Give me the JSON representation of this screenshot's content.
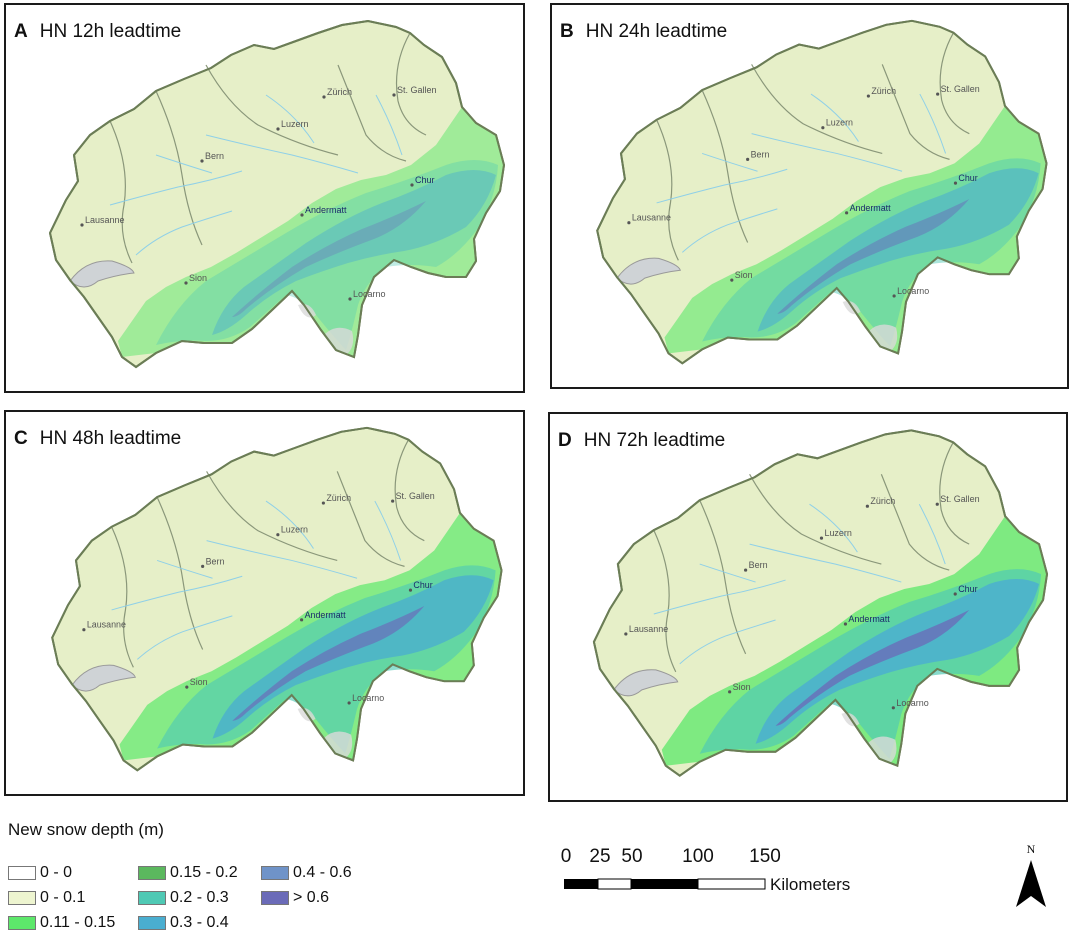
{
  "panels": [
    {
      "letter": "A",
      "title": "HN 12h leadtime",
      "snow_extent": 0.35
    },
    {
      "letter": "B",
      "title": "HN 24h leadtime",
      "snow_extent": 0.55
    },
    {
      "letter": "C",
      "title": "HN 48h leadtime",
      "snow_extent": 0.8
    },
    {
      "letter": "D",
      "title": "HN 72h leadtime",
      "snow_extent": 0.9
    }
  ],
  "map_labels": {
    "zurich": "Zürich",
    "st_gallen": "St. Gallen",
    "luzern": "Luzern",
    "bern": "Bern",
    "lausanne": "Lausanne",
    "sion": "Sion",
    "andermatt": "Andermatt",
    "chur": "Chur",
    "locarno": "Locarno"
  },
  "legend": {
    "title": "New snow depth (m)",
    "items": [
      {
        "label": "0 - 0",
        "color": "#ffffff"
      },
      {
        "label": "0 - 0.1",
        "color": "#eef5d0"
      },
      {
        "label": "0.11 - 0.15",
        "color": "#5de86b"
      },
      {
        "label": "0.15 - 0.2",
        "color": "#5bb85e"
      },
      {
        "label": "0.2 - 0.3",
        "color": "#4fc9b4"
      },
      {
        "label": "0.3 - 0.4",
        "color": "#4aaed0"
      },
      {
        "label": "0.4 - 0.6",
        "color": "#6f93c8"
      },
      {
        "label": "> 0.6",
        "color": "#6b6bb8"
      }
    ]
  },
  "scale": {
    "ticks": [
      "0",
      "25",
      "50",
      "100",
      "150"
    ],
    "units": "Kilometers"
  },
  "north": {
    "label": "N"
  },
  "colors": {
    "land": "#e6efc8",
    "border": "#6b7d56",
    "water": "#cfd3d6",
    "rivers": "#8fd0e8"
  }
}
